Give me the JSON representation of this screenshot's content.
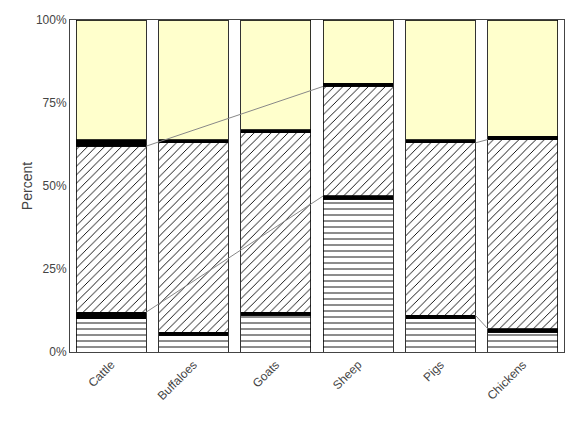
{
  "chart_data": {
    "type": "bar",
    "stacked": true,
    "categories": [
      "Cattle",
      "Buffaloes",
      "Goats",
      "Sheep",
      "Pigs",
      "Chickens"
    ],
    "series": [
      {
        "color": "#ffffff",
        "values": [
          10,
          5,
          11,
          46,
          10,
          6
        ]
      },
      {
        "color": "#000000",
        "values": [
          2,
          1,
          1,
          1,
          1,
          1
        ]
      },
      {
        "color": "#ffffff",
        "values": [
          50,
          57,
          54,
          33,
          52,
          57
        ]
      },
      {
        "color": "#000000",
        "values": [
          2,
          1,
          1,
          1,
          1,
          1
        ]
      },
      {
        "color": "#ffffcc",
        "values": [
          36,
          36,
          33,
          19,
          36,
          35
        ]
      }
    ],
    "ylabel": "Percent",
    "ylim": [
      0,
      100
    ],
    "yticks": [
      {
        "value": 0,
        "label": "0%"
      },
      {
        "value": 25,
        "label": "25%"
      },
      {
        "value": 50,
        "label": "50%"
      },
      {
        "value": 75,
        "label": "75%"
      },
      {
        "value": 100,
        "label": "100%"
      }
    ],
    "grid": false
  }
}
